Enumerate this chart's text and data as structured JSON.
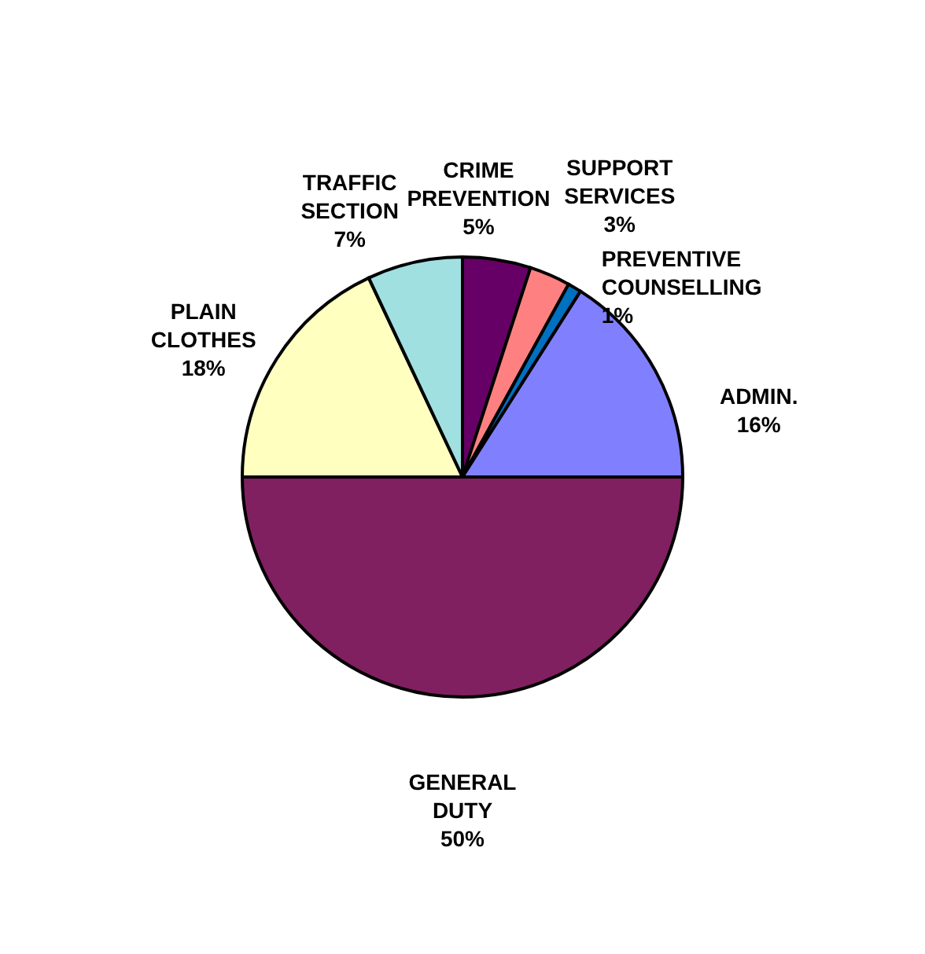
{
  "chart_data": {
    "type": "pie",
    "categories": [
      "CRIME PREVENTION",
      "SUPPORT SERVICES",
      "PREVENTIVE COUNSELLING",
      "ADMIN.",
      "GENERAL DUTY",
      "PLAIN CLOTHES",
      "TRAFFIC SECTION"
    ],
    "values": [
      5,
      3,
      1,
      16,
      50,
      18,
      7
    ],
    "value_labels": [
      "5%",
      "3%",
      "1%",
      "16%",
      "50%",
      "18%",
      "7%"
    ],
    "colors": [
      "#660066",
      "#ff8080",
      "#0070c0",
      "#8080ff",
      "#802060",
      "#ffffc0",
      "#a0e0e0"
    ]
  }
}
